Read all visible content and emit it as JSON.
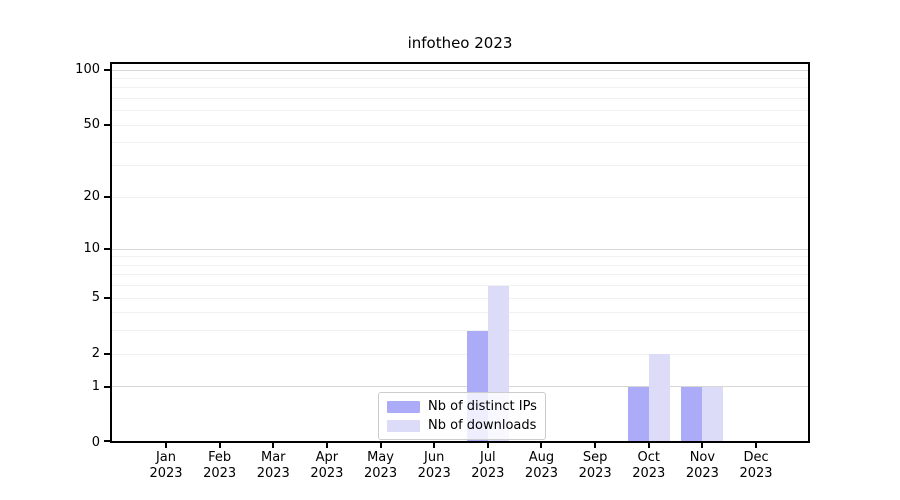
{
  "title": "infotheo 2023",
  "chart_data": {
    "type": "bar",
    "title": "infotheo 2023",
    "categories": [
      "Jan 2023",
      "Feb 2023",
      "Mar 2023",
      "Apr 2023",
      "May 2023",
      "Jun 2023",
      "Jul 2023",
      "Aug 2023",
      "Sep 2023",
      "Oct 2023",
      "Nov 2023",
      "Dec 2023"
    ],
    "series": [
      {
        "name": "Nb of distinct IPs",
        "color": "#ababf8",
        "values": [
          0,
          0,
          0,
          0,
          0,
          0,
          3,
          0,
          0,
          1,
          1,
          0
        ]
      },
      {
        "name": "Nb of downloads",
        "color": "#dcdcf8",
        "values": [
          0,
          0,
          0,
          0,
          0,
          0,
          6,
          0,
          0,
          2,
          1,
          0
        ]
      }
    ],
    "yscale": "log1p",
    "yticks": [
      0,
      1,
      2,
      5,
      10,
      20,
      50,
      100
    ],
    "ylim": [
      0,
      111
    ],
    "grid": "horizontal; major gridlines at 1, 10, 100; faint minor gridlines at 2-9 of each decade",
    "legend_position": "bottom center inside plot"
  },
  "colors": {
    "background": "#ffffff",
    "text": "#000000",
    "spine": "#000000",
    "grid_major": "#d6d6d6",
    "grid_minor": "#f1f1f1",
    "legend_border": "#cccccc"
  }
}
